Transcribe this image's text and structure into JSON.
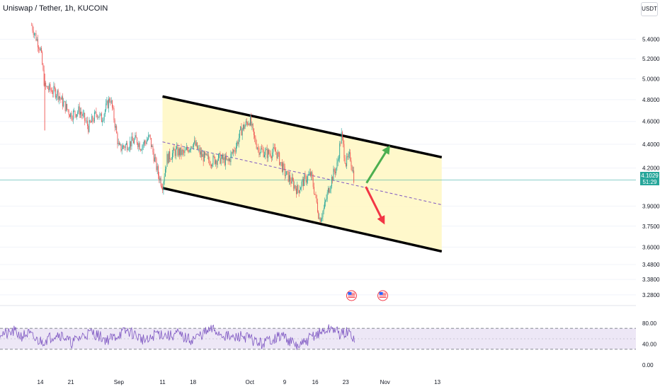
{
  "header": {
    "title": "Uniswap / Tether, 1h, KUCOIN",
    "currency": "USDT"
  },
  "price_tag": {
    "price": "4.1029",
    "countdown": "51:29"
  },
  "colors": {
    "up": "#26a69a",
    "down": "#ef5350",
    "channel_fill": "#fff7c2",
    "channel_line": "#000000",
    "midline": "#7e57c2",
    "rsi_line": "#7e57c2",
    "rsi_band": "#ede7f6",
    "up_arrow": "#4caf50",
    "down_arrow": "#f23645",
    "price_line": "#26a69a"
  },
  "icons": [
    "us-flag-event-icon",
    "us-flag-event-icon"
  ],
  "chart_data": [
    {
      "type": "candlestick",
      "title": "Uniswap / Tether, 1h, KUCOIN",
      "y_scale": "log",
      "ylim": [
        3.23,
        5.75
      ],
      "y_ticks": [
        "5.4000",
        "5.2000",
        "5.0000",
        "4.8000",
        "4.6000",
        "4.4000",
        "4.2000",
        "3.9000",
        "3.7500",
        "3.6000",
        "3.4800",
        "3.3800",
        "3.2800"
      ],
      "x_ticks": [
        "14",
        "21",
        "Sep",
        "11",
        "18",
        "Oct",
        "9",
        "16",
        "23",
        "Nov",
        "13"
      ],
      "last_price": 4.1029,
      "series_close": [
        {
          "x": "Aug 12",
          "y": 5.55
        },
        {
          "x": "Aug 13",
          "y": 5.42
        },
        {
          "x": "Aug 14",
          "y": 5.3
        },
        {
          "x": "Aug 15",
          "y": 4.92
        },
        {
          "x": "Aug 16",
          "y": 4.9
        },
        {
          "x": "Aug 18",
          "y": 4.86
        },
        {
          "x": "Aug 19",
          "y": 4.78
        },
        {
          "x": "Aug 21",
          "y": 4.66
        },
        {
          "x": "Aug 23",
          "y": 4.7
        },
        {
          "x": "Aug 25",
          "y": 4.55
        },
        {
          "x": "Aug 27",
          "y": 4.68
        },
        {
          "x": "Aug 28",
          "y": 4.62
        },
        {
          "x": "Aug 30",
          "y": 4.82
        },
        {
          "x": "Aug 31",
          "y": 4.6
        },
        {
          "x": "Sep 1",
          "y": 4.36
        },
        {
          "x": "Sep 3",
          "y": 4.4
        },
        {
          "x": "Sep 5",
          "y": 4.44
        },
        {
          "x": "Sep 6",
          "y": 4.38
        },
        {
          "x": "Sep 8",
          "y": 4.46
        },
        {
          "x": "Sep 9",
          "y": 4.3
        },
        {
          "x": "Sep 10",
          "y": 4.15
        },
        {
          "x": "Sep 11",
          "y": 4.06
        },
        {
          "x": "Sep 12",
          "y": 4.28
        },
        {
          "x": "Sep 14",
          "y": 4.34
        },
        {
          "x": "Sep 16",
          "y": 4.32
        },
        {
          "x": "Sep 18",
          "y": 4.42
        },
        {
          "x": "Sep 20",
          "y": 4.3
        },
        {
          "x": "Sep 22",
          "y": 4.26
        },
        {
          "x": "Sep 24",
          "y": 4.28
        },
        {
          "x": "Sep 26",
          "y": 4.25
        },
        {
          "x": "Sep 28",
          "y": 4.4
        },
        {
          "x": "Sep 29",
          "y": 4.52
        },
        {
          "x": "Oct 1",
          "y": 4.62
        },
        {
          "x": "Oct 2",
          "y": 4.45
        },
        {
          "x": "Oct 3",
          "y": 4.36
        },
        {
          "x": "Oct 5",
          "y": 4.32
        },
        {
          "x": "Oct 7",
          "y": 4.34
        },
        {
          "x": "Oct 9",
          "y": 4.16
        },
        {
          "x": "Oct 10",
          "y": 4.12
        },
        {
          "x": "Oct 12",
          "y": 4.02
        },
        {
          "x": "Oct 13",
          "y": 4.08
        },
        {
          "x": "Oct 14",
          "y": 4.12
        },
        {
          "x": "Oct 15",
          "y": 4.15
        },
        {
          "x": "Oct 16",
          "y": 3.98
        },
        {
          "x": "Oct 17",
          "y": 3.8
        },
        {
          "x": "Oct 18",
          "y": 3.88
        },
        {
          "x": "Oct 19",
          "y": 4.02
        },
        {
          "x": "Oct 20",
          "y": 4.14
        },
        {
          "x": "Oct 21",
          "y": 4.22
        },
        {
          "x": "Oct 22",
          "y": 4.48
        },
        {
          "x": "Oct 23",
          "y": 4.24
        },
        {
          "x": "Oct 24",
          "y": 4.3
        },
        {
          "x": "Oct 25",
          "y": 4.1
        }
      ],
      "channel": {
        "upper": [
          {
            "x": "Sep 11",
            "y": 4.83
          },
          {
            "x": "Nov 14",
            "y": 4.29
          }
        ],
        "lower": [
          {
            "x": "Sep 11",
            "y": 4.04
          },
          {
            "x": "Nov 14",
            "y": 3.57
          }
        ],
        "middle": [
          {
            "x": "Sep 11",
            "y": 4.42
          },
          {
            "x": "Nov 14",
            "y": 3.91
          }
        ]
      },
      "annotations": [
        "green arrow up",
        "red arrow down"
      ]
    },
    {
      "type": "line",
      "name": "RSI",
      "ylim": [
        0,
        100
      ],
      "y_ticks": [
        "80.00",
        "40.00",
        "0.00"
      ],
      "band": [
        30,
        70
      ],
      "midline": 50,
      "series_values": [
        62,
        58,
        64,
        55,
        60,
        48,
        45,
        52,
        60,
        55,
        42,
        50,
        58,
        62,
        55,
        48,
        52,
        60,
        65,
        58,
        50,
        45,
        62,
        58,
        55,
        60,
        52,
        48,
        55,
        62,
        68,
        60,
        55,
        50,
        56,
        52,
        45,
        40,
        48,
        52,
        56,
        44,
        35,
        42,
        55,
        60,
        66,
        70,
        58,
        62,
        52
      ]
    }
  ]
}
